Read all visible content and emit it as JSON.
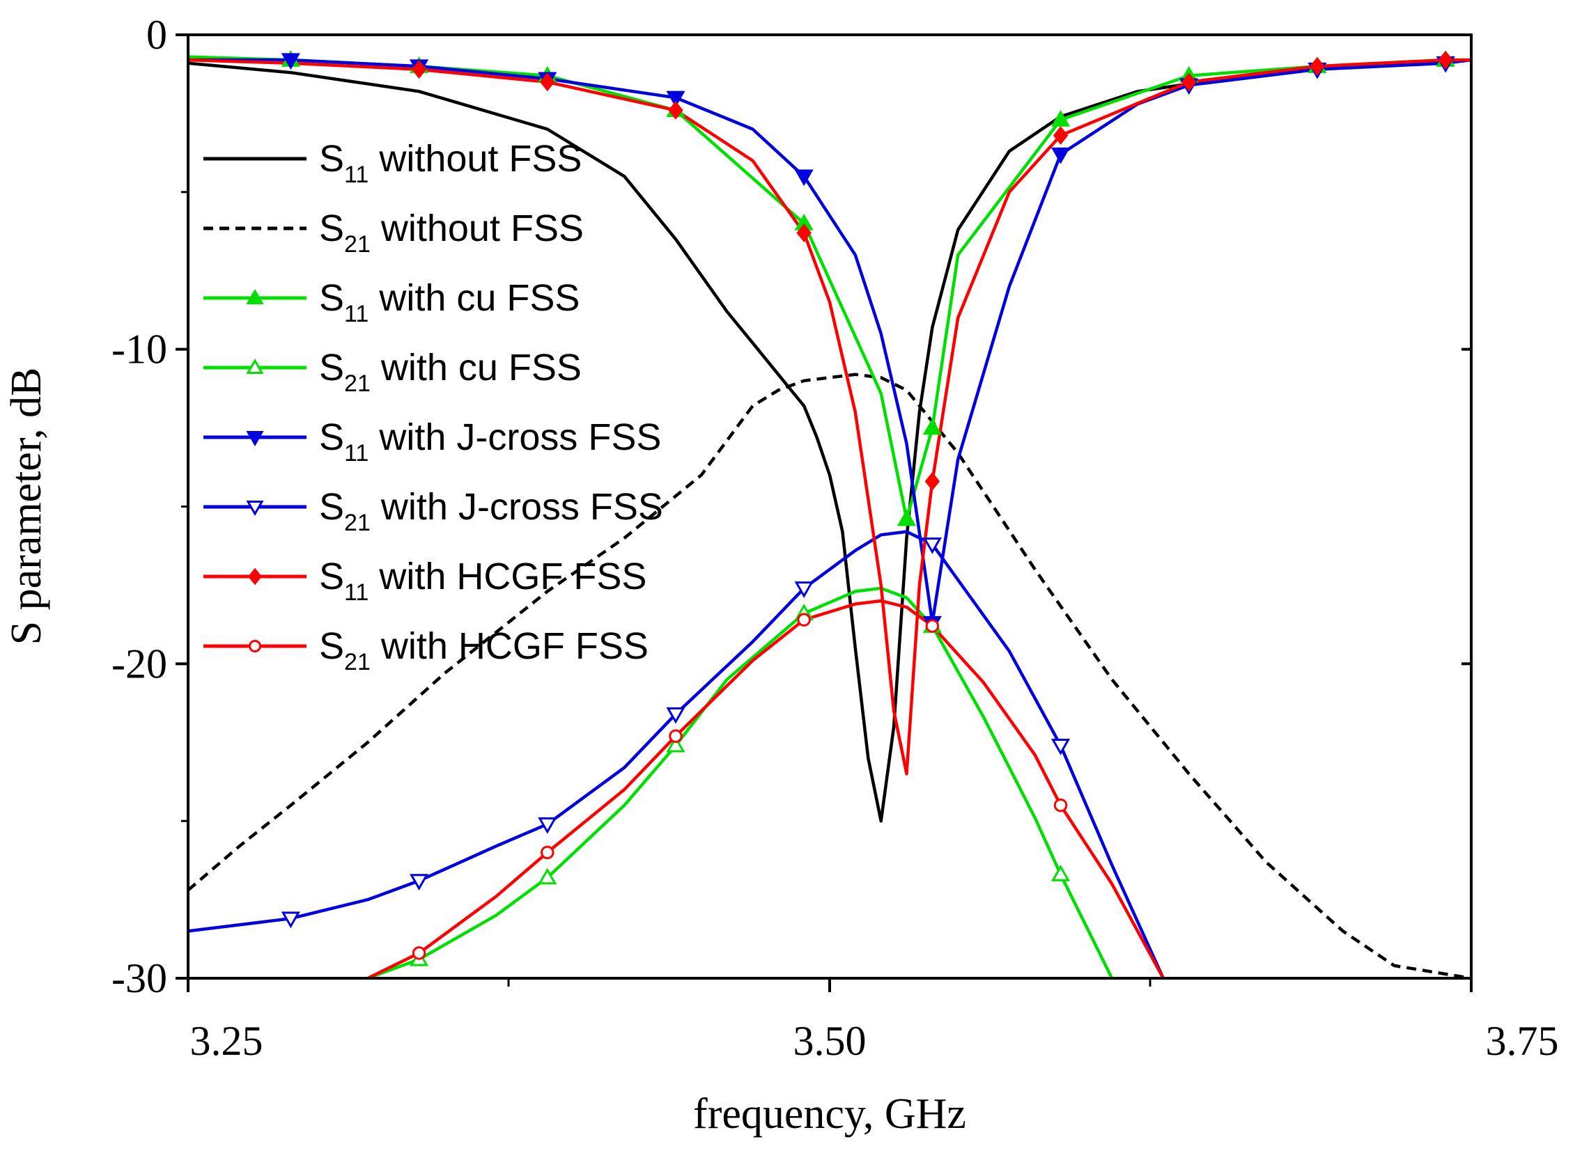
{
  "chart_data": {
    "type": "line",
    "title": "",
    "xlabel": "frequency, GHz",
    "ylabel": "S parameter, dB",
    "xlim": [
      3.23,
      3.73
    ],
    "ylim": [
      -30,
      0
    ],
    "xticks": [
      {
        "value": 3.25,
        "label": "3.25"
      },
      {
        "value": 3.5,
        "label": "3.50"
      },
      {
        "value": 3.75,
        "label": "3.75"
      }
    ],
    "yticks": [
      {
        "value": 0,
        "label": "0"
      },
      {
        "value": -10,
        "label": "-10"
      },
      {
        "value": -20,
        "label": "-20"
      },
      {
        "value": -30,
        "label": "-30"
      }
    ],
    "legend_position": "left",
    "series": [
      {
        "name": "S11 without FSS",
        "param": "S",
        "sub": "11",
        "rest": " without FSS",
        "color": "#000000",
        "dash": "solid",
        "marker": "none",
        "x": [
          3.23,
          3.27,
          3.32,
          3.37,
          3.4,
          3.42,
          3.44,
          3.45,
          3.46,
          3.465,
          3.47,
          3.475,
          3.48,
          3.485,
          3.49,
          3.495,
          3.5,
          3.505,
          3.51,
          3.515,
          3.52,
          3.53,
          3.55,
          3.57,
          3.6,
          3.65,
          3.7,
          3.73
        ],
        "y": [
          -0.9,
          -1.2,
          -1.8,
          -3.0,
          -4.5,
          -6.5,
          -8.8,
          -9.8,
          -10.8,
          -11.3,
          -11.8,
          -12.8,
          -14,
          -15.8,
          -19.5,
          -23,
          -25,
          -22,
          -16,
          -12,
          -9.3,
          -6.2,
          -3.7,
          -2.6,
          -1.8,
          -1.2,
          -0.9,
          -0.8
        ]
      },
      {
        "name": "S21 without FSS",
        "param": "S",
        "sub": "21",
        "rest": " without FSS",
        "color": "#000000",
        "dash": "dashed",
        "marker": "none",
        "x": [
          3.23,
          3.25,
          3.27,
          3.3,
          3.33,
          3.37,
          3.4,
          3.43,
          3.45,
          3.46,
          3.47,
          3.48,
          3.49,
          3.5,
          3.51,
          3.53,
          3.56,
          3.59,
          3.62,
          3.65,
          3.68,
          3.7,
          3.73
        ],
        "y": [
          -27.2,
          -25.8,
          -24.5,
          -22.5,
          -20.3,
          -17.7,
          -16.0,
          -14.0,
          -11.8,
          -11.3,
          -11.0,
          -10.9,
          -10.8,
          -10.9,
          -11.3,
          -13.3,
          -17.0,
          -20.5,
          -23.5,
          -26.3,
          -28.5,
          -29.6,
          -30
        ]
      },
      {
        "name": "S11 with cu FSS",
        "param": "S",
        "sub": "11",
        "rest": " with cu FSS",
        "color": "#00e000",
        "dash": "solid",
        "marker": "triangle-up-filled",
        "x": [
          3.23,
          3.27,
          3.32,
          3.37,
          3.42,
          3.47,
          3.5,
          3.51,
          3.52,
          3.53,
          3.57,
          3.62,
          3.67,
          3.72,
          3.73
        ],
        "y": [
          -0.7,
          -0.8,
          -1.0,
          -1.3,
          -2.4,
          -6.0,
          -11.4,
          -15.4,
          -12.5,
          -7.0,
          -2.7,
          -1.3,
          -1.0,
          -0.8,
          -0.8
        ],
        "markers_x": [
          3.27,
          3.32,
          3.37,
          3.42,
          3.47,
          3.51,
          3.52,
          3.57,
          3.62,
          3.67,
          3.72
        ]
      },
      {
        "name": "S21 with cu FSS",
        "param": "S",
        "sub": "21",
        "rest": " with cu FSS",
        "color": "#00e000",
        "dash": "solid",
        "marker": "triangle-up-open",
        "x": [
          3.3,
          3.32,
          3.35,
          3.37,
          3.4,
          3.42,
          3.44,
          3.47,
          3.49,
          3.5,
          3.51,
          3.52,
          3.54,
          3.56,
          3.57,
          3.59
        ],
        "y": [
          -30,
          -29.4,
          -28.0,
          -26.8,
          -24.5,
          -22.6,
          -20.5,
          -18.4,
          -17.7,
          -17.6,
          -17.9,
          -18.8,
          -21.7,
          -24.9,
          -26.7,
          -30
        ],
        "markers_x": [
          3.32,
          3.37,
          3.42,
          3.47,
          3.52,
          3.57
        ]
      },
      {
        "name": "S11 with J-cross FSS",
        "param": "S",
        "sub": "11",
        "rest": " with J-cross FSS",
        "color": "#0000e0",
        "dash": "solid",
        "marker": "triangle-down-filled",
        "x": [
          3.23,
          3.27,
          3.32,
          3.37,
          3.42,
          3.45,
          3.47,
          3.49,
          3.5,
          3.51,
          3.52,
          3.53,
          3.55,
          3.57,
          3.6,
          3.62,
          3.67,
          3.72,
          3.73
        ],
        "y": [
          -0.8,
          -0.8,
          -1.0,
          -1.4,
          -2.0,
          -3.0,
          -4.5,
          -7.0,
          -9.5,
          -13.0,
          -18.7,
          -13.5,
          -8.0,
          -3.8,
          -2.2,
          -1.6,
          -1.1,
          -0.9,
          -0.8
        ],
        "markers_x": [
          3.27,
          3.32,
          3.37,
          3.42,
          3.47,
          3.52,
          3.57,
          3.62,
          3.67,
          3.72
        ]
      },
      {
        "name": "S21 with J-cross FSS",
        "param": "S",
        "sub": "21",
        "rest": " with J-cross FSS",
        "color": "#0000e0",
        "dash": "solid",
        "marker": "triangle-down-open",
        "x": [
          3.23,
          3.27,
          3.3,
          3.32,
          3.35,
          3.37,
          3.4,
          3.42,
          3.45,
          3.47,
          3.49,
          3.5,
          3.51,
          3.52,
          3.55,
          3.57,
          3.59,
          3.61
        ],
        "y": [
          -28.5,
          -28.1,
          -27.5,
          -26.9,
          -25.8,
          -25.1,
          -23.3,
          -21.6,
          -19.3,
          -17.6,
          -16.4,
          -15.9,
          -15.8,
          -16.2,
          -19.6,
          -22.6,
          -26.4,
          -30
        ],
        "markers_x": [
          3.27,
          3.32,
          3.37,
          3.42,
          3.47,
          3.52,
          3.57
        ]
      },
      {
        "name": "S11 with HCGF FSS",
        "param": "S",
        "sub": "11",
        "rest": " with HCGF FSS",
        "color": "#ff0000",
        "dash": "solid",
        "marker": "diamond-filled",
        "x": [
          3.23,
          3.27,
          3.32,
          3.37,
          3.42,
          3.45,
          3.47,
          3.48,
          3.49,
          3.5,
          3.505,
          3.51,
          3.515,
          3.52,
          3.53,
          3.55,
          3.57,
          3.62,
          3.67,
          3.72,
          3.73
        ],
        "y": [
          -0.8,
          -0.9,
          -1.1,
          -1.5,
          -2.4,
          -4.0,
          -6.3,
          -8.5,
          -12,
          -17.5,
          -21.5,
          -23.5,
          -17.5,
          -14.2,
          -9.0,
          -5.0,
          -3.2,
          -1.5,
          -1.0,
          -0.8,
          -0.8
        ],
        "markers_x": [
          3.32,
          3.37,
          3.42,
          3.47,
          3.52,
          3.57,
          3.62,
          3.67,
          3.72
        ]
      },
      {
        "name": "S21 with HCGF FSS",
        "param": "S",
        "sub": "21",
        "rest": " with HCGF FSS",
        "color": "#ff0000",
        "dash": "solid",
        "marker": "circle-open",
        "x": [
          3.3,
          3.32,
          3.35,
          3.37,
          3.4,
          3.42,
          3.45,
          3.47,
          3.49,
          3.5,
          3.51,
          3.52,
          3.54,
          3.56,
          3.57,
          3.59,
          3.61
        ],
        "y": [
          -30,
          -29.2,
          -27.4,
          -26.0,
          -24.0,
          -22.3,
          -19.9,
          -18.6,
          -18.1,
          -18.0,
          -18.2,
          -18.8,
          -20.6,
          -22.9,
          -24.5,
          -27.0,
          -30
        ],
        "markers_x": [
          3.32,
          3.37,
          3.42,
          3.47,
          3.52,
          3.57
        ]
      }
    ]
  }
}
